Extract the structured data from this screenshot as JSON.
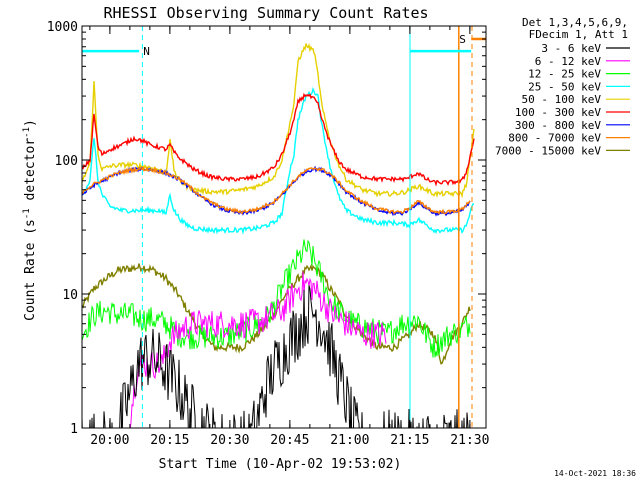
{
  "chart_data": {
    "type": "line",
    "title": "RHESSI Observing Summary Count Rates",
    "xlabel": "Start Time (10-Apr-02 19:53:02)",
    "ylabel": "Count Rate (s⁻¹ detector⁻¹)",
    "ylabel_main": "Count Rate (s",
    "ylabel_sup1": "-1",
    "ylabel_mid": " detector",
    "ylabel_sup2": "-1",
    "ylabel_end": ")",
    "yscale": "log",
    "ylim": [
      1,
      1000
    ],
    "xlim_minutes": [
      0,
      101
    ],
    "x_start": "19:53:02",
    "x_ticks": [
      {
        "t": 6.97,
        "label": "20:00"
      },
      {
        "t": 21.97,
        "label": "20:15"
      },
      {
        "t": 36.97,
        "label": "20:30"
      },
      {
        "t": 51.97,
        "label": "20:45"
      },
      {
        "t": 66.97,
        "label": "21:00"
      },
      {
        "t": 81.97,
        "label": "21:15"
      },
      {
        "t": 96.97,
        "label": "21:30"
      }
    ],
    "y_ticks": [
      {
        "v": 1,
        "label": "1"
      },
      {
        "v": 10,
        "label": "10"
      },
      {
        "v": 100,
        "label": "100"
      },
      {
        "v": 1000,
        "label": "1000"
      }
    ],
    "legend_header": [
      "Det 1,3,4,5,6,9,",
      "FDecim 1, Att 1"
    ],
    "series": [
      {
        "name": "3 - 6 keV",
        "color": "#000000",
        "t": [
          0,
          4,
          8,
          12,
          14,
          16,
          18,
          20,
          24,
          28,
          34,
          42,
          44,
          46,
          48,
          50,
          52,
          54,
          56,
          58,
          60,
          62,
          64,
          66,
          68,
          70,
          74,
          80,
          86,
          90,
          93,
          95,
          97
        ],
        "v": [
          0.8,
          0.8,
          0.8,
          1.8,
          3,
          3.3,
          3.3,
          3,
          2,
          1.2,
          0.8,
          0.8,
          1.2,
          2,
          2.8,
          3.5,
          4.5,
          5.5,
          7,
          7.5,
          6,
          4,
          2.5,
          1.6,
          1,
          0.8,
          0.8,
          0.8,
          0.8,
          0.8,
          0.8,
          0.8,
          0.8
        ]
      },
      {
        "name": "6 - 12 keV",
        "color": "#ff00ff",
        "t": [
          12,
          14,
          16,
          18,
          20,
          22,
          25,
          28,
          34,
          42,
          46,
          48,
          50,
          52,
          54,
          56,
          58,
          60,
          62,
          64,
          66,
          68,
          70,
          74,
          76
        ],
        "v": [
          1.2,
          3,
          3,
          3,
          3,
          4.5,
          5.5,
          6,
          6,
          6,
          6.5,
          7,
          7.5,
          9,
          11,
          12,
          11,
          9,
          7.5,
          6.5,
          6,
          5.5,
          5,
          5,
          5
        ]
      },
      {
        "name": "12 - 25 keV",
        "color": "#00ff00",
        "t": [
          0,
          3,
          6,
          9,
          12,
          15,
          18,
          21,
          24,
          27,
          30,
          36,
          42,
          46,
          48,
          50,
          52,
          54,
          56,
          58,
          60,
          62,
          64,
          68,
          72,
          76,
          80,
          84,
          86,
          88,
          90,
          92,
          95,
          97
        ],
        "v": [
          5,
          7,
          7.5,
          7,
          7,
          6.5,
          6.5,
          6,
          5,
          4.8,
          4.8,
          4.8,
          5.5,
          6.5,
          8,
          11,
          14,
          18,
          22,
          18,
          13,
          9,
          7.5,
          6,
          5.5,
          5,
          6,
          6.5,
          5,
          4,
          4.5,
          5,
          5.5,
          6
        ]
      },
      {
        "name": "25 - 50 keV",
        "color": "#00ffff",
        "t": [
          0,
          2,
          3,
          4,
          5,
          7,
          10,
          13,
          15,
          17,
          19,
          21,
          22,
          23,
          24,
          25,
          26,
          28,
          32,
          36,
          40,
          44,
          48,
          50,
          52,
          53,
          54,
          56,
          58,
          59,
          60,
          62,
          64,
          66,
          70,
          74,
          78,
          81,
          82,
          84,
          86,
          88,
          92,
          95,
          96,
          97,
          98
        ],
        "v": [
          55,
          70,
          150,
          70,
          55,
          45,
          42,
          42,
          42,
          42,
          42,
          40,
          55,
          42,
          38,
          35,
          33,
          31,
          30,
          30,
          30,
          31,
          34,
          40,
          85,
          110,
          200,
          300,
          330,
          300,
          180,
          90,
          55,
          42,
          36,
          34,
          34,
          33,
          33,
          36,
          33,
          30,
          30,
          30,
          32,
          40,
          48
        ]
      },
      {
        "name": "50 - 100 keV",
        "color": "#e6d000",
        "t": [
          0,
          2,
          3,
          4,
          5,
          7,
          10,
          13,
          15,
          17,
          19,
          21,
          22,
          23,
          24,
          25,
          26,
          28,
          32,
          36,
          40,
          44,
          48,
          50,
          52,
          53,
          54,
          56,
          58,
          59,
          60,
          62,
          64,
          66,
          70,
          74,
          78,
          81,
          82,
          84,
          86,
          88,
          92,
          95,
          96,
          97,
          98
        ],
        "v": [
          68,
          95,
          380,
          110,
          85,
          90,
          92,
          92,
          90,
          88,
          85,
          80,
          140,
          85,
          72,
          68,
          64,
          60,
          58,
          58,
          60,
          64,
          75,
          100,
          190,
          260,
          550,
          720,
          650,
          430,
          250,
          140,
          95,
          72,
          60,
          56,
          56,
          58,
          60,
          64,
          60,
          56,
          56,
          56,
          65,
          100,
          170
        ]
      },
      {
        "name": "100 - 300 keV",
        "color": "#ff0000",
        "t": [
          0,
          2,
          3,
          4,
          5,
          7,
          10,
          13,
          15,
          17,
          19,
          21,
          22,
          23,
          24,
          25,
          26,
          28,
          32,
          36,
          40,
          44,
          48,
          50,
          52,
          53,
          54,
          56,
          58,
          59,
          60,
          62,
          64,
          66,
          70,
          74,
          78,
          81,
          82,
          84,
          86,
          88,
          92,
          95,
          96,
          97,
          98
        ],
        "v": [
          85,
          100,
          220,
          125,
          110,
          120,
          130,
          145,
          140,
          130,
          125,
          120,
          130,
          115,
          105,
          100,
          95,
          85,
          75,
          72,
          72,
          75,
          88,
          110,
          160,
          200,
          270,
          310,
          285,
          260,
          200,
          135,
          100,
          85,
          75,
          72,
          72,
          72,
          75,
          80,
          72,
          68,
          68,
          70,
          80,
          105,
          145
        ]
      },
      {
        "name": "300 - 800 keV",
        "color": "#0000ff",
        "t": [
          0,
          3,
          6,
          9,
          12,
          15,
          18,
          21,
          24,
          27,
          30,
          33,
          36,
          40,
          44,
          48,
          50,
          52,
          54,
          56,
          58,
          60,
          62,
          64,
          66,
          70,
          74,
          78,
          80,
          82,
          84,
          86,
          88,
          92,
          95,
          97
        ],
        "v": [
          55,
          65,
          72,
          80,
          84,
          86,
          84,
          80,
          72,
          62,
          52,
          46,
          42,
          40,
          42,
          48,
          55,
          64,
          74,
          82,
          86,
          84,
          78,
          68,
          58,
          48,
          42,
          40,
          40,
          43,
          48,
          44,
          40,
          40,
          42,
          48
        ]
      },
      {
        "name": "800 - 7000 keV",
        "color": "#ff8000",
        "t": [
          0,
          3,
          6,
          9,
          12,
          15,
          18,
          21,
          24,
          27,
          30,
          33,
          36,
          40,
          44,
          48,
          50,
          52,
          54,
          56,
          58,
          60,
          62,
          64,
          66,
          70,
          74,
          78,
          80,
          82,
          84,
          86,
          88,
          92,
          95,
          97
        ],
        "v": [
          58,
          66,
          73,
          80,
          84,
          86,
          84,
          80,
          73,
          63,
          53,
          47,
          43,
          41,
          43,
          49,
          56,
          65,
          75,
          83,
          87,
          85,
          79,
          69,
          59,
          49,
          43,
          41,
          41,
          44,
          49,
          45,
          41,
          41,
          43,
          50
        ]
      },
      {
        "name": "7000 - 15000 keV",
        "color": "#808000",
        "t": [
          0,
          3,
          6,
          9,
          12,
          15,
          18,
          21,
          24,
          27,
          30,
          33,
          36,
          40,
          44,
          48,
          50,
          52,
          54,
          56,
          58,
          60,
          62,
          64,
          66,
          70,
          74,
          78,
          80,
          82,
          84,
          86,
          88,
          90,
          92,
          95,
          97
        ],
        "v": [
          8,
          11,
          13,
          15,
          15.5,
          16,
          15,
          13,
          10,
          7,
          5,
          4,
          4,
          4,
          5,
          7,
          9,
          11,
          13,
          15,
          15.5,
          14,
          11,
          9,
          7,
          5,
          4,
          4,
          4.5,
          5,
          6,
          5.5,
          5,
          3,
          4.5,
          6,
          8
        ]
      }
    ],
    "annotations": {
      "flag_N": {
        "label": "N",
        "t_start": 0,
        "t_end": 14.3,
        "level": 650,
        "color": "#00ffff"
      },
      "flag_S": {
        "label": "S",
        "t_start": 97.3,
        "t_end": 101,
        "level": 800,
        "color": "#ff8000"
      },
      "vlines": [
        {
          "t": 15.1,
          "color": "#00ffff",
          "style": "dashed"
        },
        {
          "t": 82.0,
          "color": "#00ffff",
          "style": "solid"
        },
        {
          "t": 94.2,
          "color": "#ff8000",
          "style": "solid"
        },
        {
          "t": 97.5,
          "color": "#ff8000",
          "style": "dashed"
        }
      ],
      "hline_cyan": {
        "t_start": 82.0,
        "t_end": 97.3,
        "level": 650
      }
    },
    "footer_date": "14-Oct-2021 18:36"
  }
}
